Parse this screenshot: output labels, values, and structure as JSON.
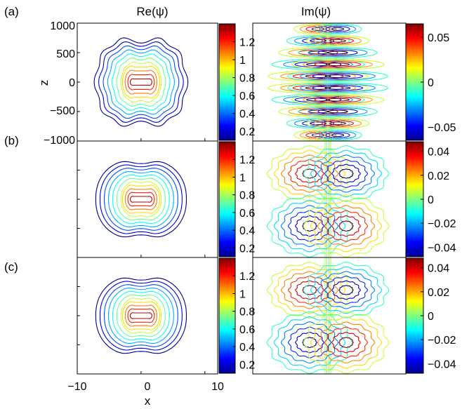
{
  "chart_data": {
    "type": "contour",
    "column_titles": [
      "Re(ψ)",
      "Im(ψ)"
    ],
    "xlabel": "x",
    "ylabel": "z",
    "x_ticks": [
      "−10",
      "0",
      "10"
    ],
    "z_ticks": [
      "1000",
      "500",
      "0",
      "−500",
      "−1000"
    ],
    "xlim": [
      -10,
      12
    ],
    "zlim": [
      -1000,
      1000
    ],
    "rows": [
      {
        "label": "(a)",
        "re": {
          "levels": [
            0.12,
            0.24,
            0.36,
            0.48,
            0.6,
            0.72,
            0.84,
            0.96,
            1.08,
            1.2,
            1.32
          ],
          "colorbar_range": [
            0.1,
            1.4
          ],
          "colorbar_ticks": [
            "1.2",
            "1",
            "0.8",
            "0.6",
            "0.4",
            "0.2"
          ]
        },
        "im": {
          "pattern": "striped",
          "stripes": 10,
          "amplitude": 0.065,
          "colorbar_range": [
            -0.065,
            0.065
          ],
          "colorbar_ticks": [
            "0.05",
            "0",
            "−0.05"
          ]
        }
      },
      {
        "label": "(b)",
        "re": {
          "levels": [
            0.12,
            0.24,
            0.36,
            0.48,
            0.6,
            0.72,
            0.84,
            0.96,
            1.08,
            1.2,
            1.32
          ],
          "colorbar_range": [
            0.1,
            1.4
          ],
          "colorbar_ticks": [
            "1.2",
            "1",
            "0.8",
            "0.6",
            "0.4",
            "0.2"
          ]
        },
        "im": {
          "pattern": "two-lobe",
          "lobes": 2,
          "amplitude": 0.048,
          "colorbar_range": [
            -0.048,
            0.048
          ],
          "colorbar_ticks": [
            "0.04",
            "0.02",
            "0",
            "−0.02",
            "−0.04"
          ]
        }
      },
      {
        "label": "(c)",
        "re": {
          "levels": [
            0.12,
            0.24,
            0.36,
            0.48,
            0.6,
            0.72,
            0.84,
            0.96,
            1.08,
            1.2,
            1.32
          ],
          "colorbar_range": [
            0.1,
            1.4
          ],
          "colorbar_ticks": [
            "1.2",
            "1",
            "0.8",
            "0.6",
            "0.4",
            "0.2"
          ]
        },
        "im": {
          "pattern": "two-lobe",
          "lobes": 2,
          "amplitude": 0.048,
          "colorbar_range": [
            -0.048,
            0.048
          ],
          "colorbar_ticks": [
            "0.04",
            "0.02",
            "0",
            "−0.02",
            "−0.04"
          ]
        }
      }
    ],
    "colormap": "jet",
    "grid": false
  }
}
